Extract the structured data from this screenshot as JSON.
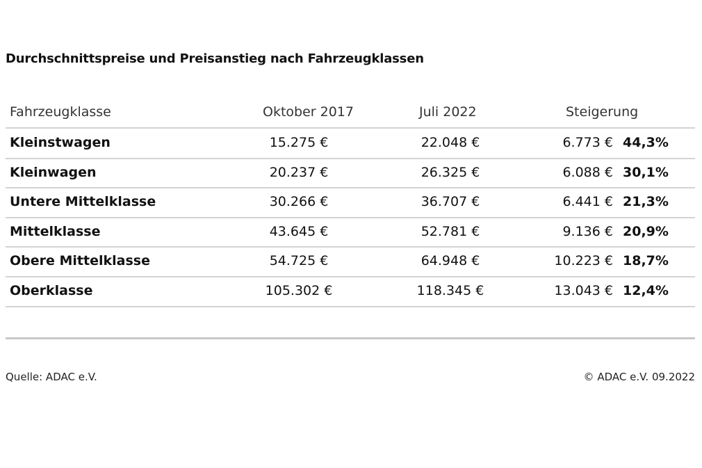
{
  "chart_data": {
    "type": "table",
    "title": "Durchschnittspreise und Preisanstieg nach Fahrzeugklassen",
    "columns": [
      "Fahrzeugklasse",
      "Oktober 2017",
      "Juli 2022",
      "Steigerung"
    ],
    "rows": [
      {
        "class": "Kleinstwagen",
        "oct2017": "15.275 €",
        "jul2022": "22.048 €",
        "increase": "6.773 €",
        "percent": "44,3%"
      },
      {
        "class": "Kleinwagen",
        "oct2017": "20.237 €",
        "jul2022": "26.325 €",
        "increase": "6.088 €",
        "percent": "30,1%"
      },
      {
        "class": "Untere Mittelklasse",
        "oct2017": "30.266 €",
        "jul2022": "36.707 €",
        "increase": "6.441 €",
        "percent": "21,3%"
      },
      {
        "class": "Mittelklasse",
        "oct2017": "43.645 €",
        "jul2022": "52.781 €",
        "increase": "9.136 €",
        "percent": "20,9%"
      },
      {
        "class": "Obere Mittelklasse",
        "oct2017": "54.725 €",
        "jul2022": "64.948 €",
        "increase": "10.223 €",
        "percent": "18,7%"
      },
      {
        "class": "Oberklasse",
        "oct2017": "105.302 €",
        "jul2022": "118.345 €",
        "increase": "13.043 €",
        "percent": "12,4%"
      }
    ]
  },
  "footer": {
    "source": "Quelle: ADAC e.V.",
    "copyright": "© ADAC e.V. 09.2022"
  }
}
